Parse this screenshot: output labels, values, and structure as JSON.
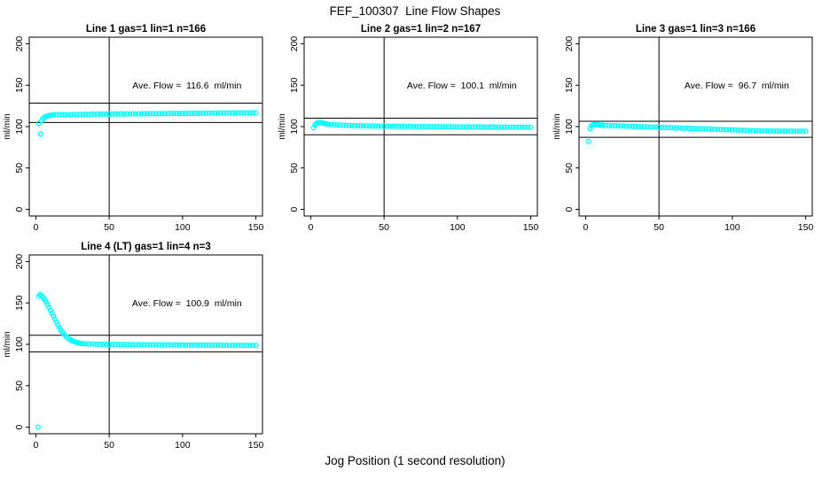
{
  "figure": {
    "title": "FEF_100307  Line Flow Shapes",
    "xlabel": "Jog Position (1 second resolution)",
    "background_color": "#ffffff",
    "axis_color": "#000000",
    "point_color": "#00ffff"
  },
  "chart_data": {
    "type": "scatter",
    "grid_layout": "2 rows x 3 cols, panels 1-3 on top row, panel 4 bottom-left",
    "xlabel": "Jog Position (1 second resolution)",
    "ylabel": "ml/min",
    "x_ticks": [
      0,
      50,
      100,
      150
    ],
    "y_ticks": [
      0,
      50,
      100,
      150,
      200
    ],
    "xlim": [
      -4.5,
      154.5
    ],
    "ylim": [
      -8,
      208
    ],
    "vline_x": 50,
    "point_style": "open circle",
    "point_color": "#00ffff",
    "charts": [
      {
        "title": "Line 1 gas=1 lin=1 n=166",
        "annotation": "Ave. Flow =  116.6  ml/min",
        "ave_flow": 116.6,
        "hlines": [
          128.3,
          104.9
        ],
        "outliers": [
          [
            2,
            104
          ],
          [
            3.2,
            91
          ]
        ],
        "segments": [
          {
            "x0": 4,
            "dx": 1,
            "y": [
              107.5,
              110.0,
              111.5,
              112.4,
              112.9,
              113.3,
              113.6,
              113.9
            ]
          },
          {
            "x0": 12,
            "dx": 2,
            "y": [
              114.3,
              114.5,
              114.3,
              114.6,
              114.4,
              114.7,
              114.5,
              114.8,
              114.6,
              114.8,
              114.7,
              114.9,
              114.7,
              115.0,
              114.8,
              115.1,
              114.9,
              115.1,
              115.0,
              115.2,
              115.0,
              115.3,
              115.1,
              115.3,
              115.2,
              115.4,
              115.2,
              115.5,
              115.3,
              115.5,
              115.4,
              115.6,
              115.4,
              115.7,
              115.5,
              115.7,
              115.6,
              115.8,
              115.6,
              115.9,
              115.7,
              115.9,
              115.8,
              116.0,
              115.8,
              116.1,
              115.9,
              116.1,
              116.0,
              116.2,
              116.0,
              116.3,
              116.1,
              116.3,
              116.2,
              116.4,
              116.2,
              116.5,
              116.3,
              116.5,
              116.4,
              116.6,
              116.4,
              116.7,
              116.5,
              116.7,
              116.5,
              116.6,
              116.7,
              116.6
            ]
          }
        ]
      },
      {
        "title": "Line 2 gas=1 lin=2 n=167",
        "annotation": "Ave. Flow =  100.1  ml/min",
        "ave_flow": 100.1,
        "hlines": [
          110.1,
          90.1
        ],
        "outliers": [
          [
            2,
            98.5
          ]
        ],
        "segments": [
          {
            "x0": 3,
            "dx": 1,
            "y": [
              102.0,
              104.0,
              104.8,
              105.0,
              104.8,
              104.5,
              104.1,
              103.6,
              103.1
            ]
          },
          {
            "x0": 12,
            "dx": 2,
            "y": [
              102.8,
              102.5,
              102.2,
              102.0,
              101.8,
              101.6,
              101.5,
              101.3,
              101.2,
              101.1,
              101.0,
              100.9,
              100.9,
              100.8,
              100.7,
              100.7,
              100.6,
              100.6,
              100.5,
              100.5,
              100.4,
              100.4,
              100.3,
              100.3,
              100.2,
              100.3,
              100.2,
              100.1,
              100.2,
              100.1,
              100.0,
              100.1,
              100.0,
              99.9,
              100.0,
              99.9,
              99.9,
              99.8,
              99.9,
              99.8,
              99.7,
              99.8,
              99.7,
              99.7,
              99.6,
              99.7,
              99.6,
              99.6,
              99.5,
              99.6,
              99.5,
              99.5,
              99.4,
              99.5,
              99.4,
              99.4,
              99.5,
              99.4,
              99.3,
              99.4,
              99.3,
              99.3,
              99.4,
              99.3,
              99.3,
              99.2,
              99.3,
              99.2,
              99.3,
              99.2
            ]
          }
        ]
      },
      {
        "title": "Line 3 gas=1 lin=3 n=166",
        "annotation": "Ave. Flow =  96.7  ml/min",
        "ave_flow": 96.7,
        "hlines": [
          106.4,
          87.0
        ],
        "outliers": [
          [
            2,
            82
          ]
        ],
        "segments": [
          {
            "x0": 3,
            "dx": 1,
            "y": [
              97.5,
              100.8,
              102.0,
              102.5,
              102.4,
              102.2,
              102.1,
              101.9,
              101.7
            ]
          },
          {
            "x0": 12,
            "dx": 2,
            "y": [
              101.5,
              101.4,
              101.3,
              101.1,
              101.0,
              100.9,
              100.8,
              100.6,
              100.5,
              100.4,
              100.3,
              100.1,
              100.0,
              99.9,
              99.8,
              99.6,
              99.5,
              99.4,
              99.3,
              99.1,
              99.0,
              98.9,
              98.8,
              98.6,
              98.5,
              98.4,
              98.3,
              98.1,
              98.0,
              97.9,
              97.8,
              97.6,
              97.5,
              97.4,
              97.3,
              97.1,
              97.0,
              96.9,
              96.8,
              96.6,
              96.5,
              96.4,
              96.3,
              96.1,
              96.0,
              95.9,
              95.8,
              95.6,
              95.5,
              95.4,
              95.3,
              95.1,
              95.0,
              94.9,
              94.9,
              94.8,
              94.7,
              94.7,
              94.6,
              94.6,
              94.5,
              94.5,
              94.4,
              94.4,
              94.5,
              94.4,
              94.3,
              94.4,
              94.3,
              94.3
            ]
          }
        ]
      },
      {
        "title": "Line 4 (LT) gas=1 lin=4 n=3",
        "annotation": "Ave. Flow =  100.9  ml/min",
        "ave_flow": 100.9,
        "hlines": [
          111.0,
          90.8
        ],
        "outliers": [
          [
            1.5,
            0
          ]
        ],
        "segments": [
          {
            "x0": 2,
            "dx": 1,
            "y": [
              158.0,
              160.0,
              158.5,
              156.5,
              154.0,
              151.0,
              148.0,
              144.5,
              141.0,
              137.5,
              134.0,
              130.5,
              127.0,
              123.5,
              120.5,
              117.5,
              115.0,
              112.8,
              110.8,
              109.0,
              107.5,
              106.2,
              105.1,
              104.2,
              103.4,
              102.8,
              102.2,
              101.8,
              101.4,
              101.1
            ]
          },
          {
            "x0": 32,
            "dx": 2,
            "y": [
              100.9,
              100.7,
              100.5,
              100.4,
              100.2,
              100.1,
              100.0,
              100.0,
              99.9,
              99.9,
              99.8,
              99.9,
              99.8,
              99.7,
              99.8,
              99.7,
              99.6,
              99.7,
              99.6,
              99.5,
              99.6,
              99.5,
              99.5,
              99.4,
              99.5,
              99.4,
              99.3,
              99.4,
              99.3,
              99.3,
              99.2,
              99.3,
              99.2,
              99.2,
              99.1,
              99.2,
              99.1,
              99.1,
              99.0,
              99.1,
              99.0,
              99.0,
              98.9,
              99.0,
              98.9,
              98.9,
              99.0,
              98.9,
              98.8,
              98.9,
              98.8,
              98.8,
              98.9,
              98.8,
              98.8,
              98.7,
              98.8,
              98.7,
              98.8,
              98.7
            ]
          }
        ]
      }
    ]
  }
}
